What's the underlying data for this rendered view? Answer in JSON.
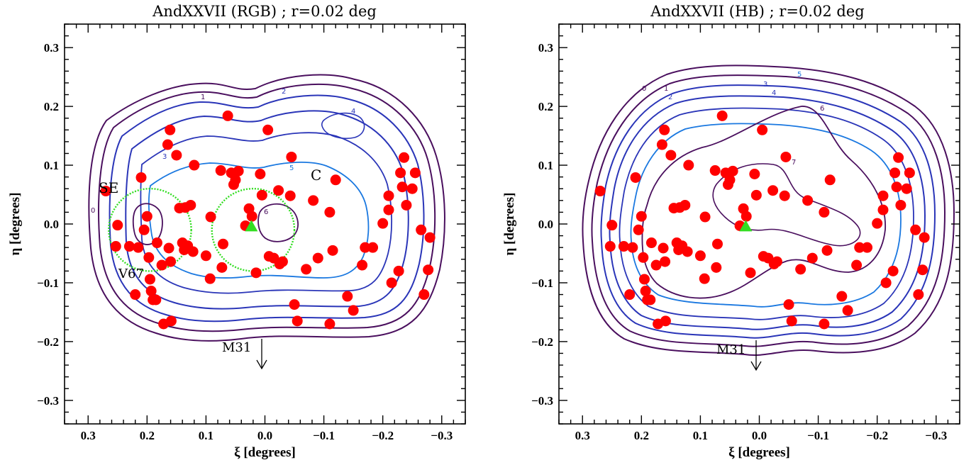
{
  "chart_data": [
    {
      "type": "scatter",
      "title": "AndXXVII (RGB) ; r=0.02 deg",
      "xlabel": "ξ [degrees]",
      "ylabel": "η [degrees]",
      "xlim": [
        0.34,
        -0.34
      ],
      "ylim": [
        -0.34,
        0.34
      ],
      "x_ticks": [
        "0.3",
        "0.2",
        "0.1",
        "0.0",
        "−0.1",
        "−0.2",
        "−0.3"
      ],
      "y_ticks": [
        "0.3",
        "0.2",
        "0.1",
        "0.0",
        "−0.1",
        "−0.2",
        "−0.3"
      ],
      "contour_levels": [
        "0",
        "1",
        "2",
        "3",
        "4",
        "5",
        "6"
      ],
      "annotations": {
        "se": "SE",
        "c": "C",
        "v67": "V67",
        "m31": "M31"
      },
      "center_marker": {
        "x": 0.023,
        "y": -0.004
      },
      "circles": [
        {
          "label": "SE",
          "x": 0.195,
          "y": -0.01,
          "r": 0.07
        },
        {
          "label": "C",
          "x": 0.02,
          "y": -0.01,
          "r": 0.07
        }
      ],
      "points": [
        [
          0.27,
          0.056
        ],
        [
          0.253,
          -0.038
        ],
        [
          0.25,
          -0.002
        ],
        [
          0.23,
          -0.038
        ],
        [
          0.22,
          -0.12
        ],
        [
          0.215,
          -0.04
        ],
        [
          0.21,
          0.079
        ],
        [
          0.205,
          -0.01
        ],
        [
          0.2,
          0.013
        ],
        [
          0.197,
          -0.057
        ],
        [
          0.195,
          -0.094
        ],
        [
          0.193,
          -0.114
        ],
        [
          0.19,
          -0.129
        ],
        [
          0.185,
          -0.129
        ],
        [
          0.183,
          -0.032
        ],
        [
          0.175,
          -0.07
        ],
        [
          0.172,
          -0.17
        ],
        [
          0.165,
          0.135
        ],
        [
          0.163,
          -0.041
        ],
        [
          0.161,
          0.16
        ],
        [
          0.16,
          -0.064
        ],
        [
          0.159,
          -0.165
        ],
        [
          0.15,
          0.117
        ],
        [
          0.145,
          0.027
        ],
        [
          0.14,
          -0.032
        ],
        [
          0.137,
          -0.044
        ],
        [
          0.135,
          0.028
        ],
        [
          0.131,
          -0.037
        ],
        [
          0.126,
          0.032
        ],
        [
          0.122,
          -0.047
        ],
        [
          0.12,
          0.1
        ],
        [
          0.1,
          -0.054
        ],
        [
          0.093,
          -0.093
        ],
        [
          0.092,
          0.012
        ],
        [
          0.075,
          0.091
        ],
        [
          0.073,
          -0.074
        ],
        [
          0.071,
          -0.034
        ],
        [
          0.063,
          0.184
        ],
        [
          0.057,
          0.087
        ],
        [
          0.053,
          0.067
        ],
        [
          0.05,
          0.075
        ],
        [
          0.045,
          0.09
        ],
        [
          0.033,
          -0.003
        ],
        [
          0.027,
          0.026
        ],
        [
          0.022,
          0.013
        ],
        [
          0.015,
          -0.083
        ],
        [
          0.008,
          0.085
        ],
        [
          0.005,
          0.049
        ],
        [
          -0.005,
          0.16
        ],
        [
          -0.007,
          -0.055
        ],
        [
          -0.015,
          -0.058
        ],
        [
          -0.023,
          0.057
        ],
        [
          -0.025,
          -0.068
        ],
        [
          -0.03,
          -0.064
        ],
        [
          -0.043,
          0.048
        ],
        [
          -0.045,
          0.114
        ],
        [
          -0.05,
          -0.137
        ],
        [
          -0.055,
          -0.165
        ],
        [
          -0.07,
          -0.077
        ],
        [
          -0.082,
          0.04
        ],
        [
          -0.09,
          -0.058
        ],
        [
          -0.11,
          0.02
        ],
        [
          -0.11,
          -0.17
        ],
        [
          -0.115,
          -0.045
        ],
        [
          -0.12,
          0.075
        ],
        [
          -0.14,
          -0.123
        ],
        [
          -0.15,
          -0.147
        ],
        [
          -0.165,
          -0.07
        ],
        [
          -0.17,
          -0.04
        ],
        [
          -0.183,
          -0.04
        ],
        [
          -0.2,
          0.001
        ],
        [
          -0.21,
          0.048
        ],
        [
          -0.21,
          0.024
        ],
        [
          -0.215,
          -0.1
        ],
        [
          -0.227,
          -0.08
        ],
        [
          -0.23,
          0.087
        ],
        [
          -0.233,
          0.063
        ],
        [
          -0.24,
          0.032
        ],
        [
          -0.25,
          0.06
        ],
        [
          -0.255,
          0.087
        ],
        [
          -0.265,
          -0.01
        ],
        [
          -0.27,
          -0.12
        ],
        [
          -0.277,
          -0.078
        ],
        [
          -0.28,
          -0.023
        ],
        [
          -0.236,
          0.113
        ]
      ]
    },
    {
      "type": "scatter",
      "title": "AndXXVII (HB) ; r=0.02 deg",
      "xlabel": "ξ [degrees]",
      "ylabel": "η [degrees]",
      "xlim": [
        0.34,
        -0.34
      ],
      "ylim": [
        -0.34,
        0.34
      ],
      "x_ticks": [
        "0.3",
        "0.2",
        "0.1",
        "0.0",
        "−0.1",
        "−0.2",
        "−0.3"
      ],
      "y_ticks": [
        "0.3",
        "0.2",
        "0.1",
        "0.0",
        "−0.1",
        "−0.2",
        "−0.3"
      ],
      "contour_levels": [
        "0",
        "1",
        "2",
        "3",
        "4",
        "5",
        "6",
        "7"
      ],
      "annotations": {
        "m31": "M31"
      },
      "center_marker": {
        "x": 0.023,
        "y": -0.004
      },
      "points": [
        [
          0.27,
          0.056
        ],
        [
          0.253,
          -0.038
        ],
        [
          0.25,
          -0.002
        ],
        [
          0.23,
          -0.038
        ],
        [
          0.22,
          -0.12
        ],
        [
          0.215,
          -0.04
        ],
        [
          0.21,
          0.079
        ],
        [
          0.205,
          -0.01
        ],
        [
          0.2,
          0.013
        ],
        [
          0.197,
          -0.057
        ],
        [
          0.195,
          -0.094
        ],
        [
          0.193,
          -0.114
        ],
        [
          0.19,
          -0.129
        ],
        [
          0.185,
          -0.129
        ],
        [
          0.183,
          -0.032
        ],
        [
          0.175,
          -0.07
        ],
        [
          0.172,
          -0.17
        ],
        [
          0.165,
          0.135
        ],
        [
          0.163,
          -0.041
        ],
        [
          0.161,
          0.16
        ],
        [
          0.16,
          -0.064
        ],
        [
          0.159,
          -0.165
        ],
        [
          0.15,
          0.117
        ],
        [
          0.145,
          0.027
        ],
        [
          0.14,
          -0.032
        ],
        [
          0.137,
          -0.044
        ],
        [
          0.135,
          0.028
        ],
        [
          0.131,
          -0.037
        ],
        [
          0.126,
          0.032
        ],
        [
          0.122,
          -0.047
        ],
        [
          0.12,
          0.1
        ],
        [
          0.1,
          -0.054
        ],
        [
          0.093,
          -0.093
        ],
        [
          0.092,
          0.012
        ],
        [
          0.075,
          0.091
        ],
        [
          0.073,
          -0.074
        ],
        [
          0.071,
          -0.034
        ],
        [
          0.063,
          0.184
        ],
        [
          0.057,
          0.087
        ],
        [
          0.053,
          0.067
        ],
        [
          0.05,
          0.075
        ],
        [
          0.045,
          0.09
        ],
        [
          0.033,
          -0.003
        ],
        [
          0.027,
          0.026
        ],
        [
          0.022,
          0.013
        ],
        [
          0.015,
          -0.083
        ],
        [
          0.008,
          0.085
        ],
        [
          0.005,
          0.049
        ],
        [
          -0.005,
          0.16
        ],
        [
          -0.007,
          -0.055
        ],
        [
          -0.015,
          -0.058
        ],
        [
          -0.023,
          0.057
        ],
        [
          -0.025,
          -0.068
        ],
        [
          -0.03,
          -0.064
        ],
        [
          -0.043,
          0.048
        ],
        [
          -0.045,
          0.114
        ],
        [
          -0.05,
          -0.137
        ],
        [
          -0.055,
          -0.165
        ],
        [
          -0.07,
          -0.077
        ],
        [
          -0.082,
          0.04
        ],
        [
          -0.09,
          -0.058
        ],
        [
          -0.11,
          0.02
        ],
        [
          -0.11,
          -0.17
        ],
        [
          -0.115,
          -0.045
        ],
        [
          -0.12,
          0.075
        ],
        [
          -0.14,
          -0.123
        ],
        [
          -0.15,
          -0.147
        ],
        [
          -0.165,
          -0.07
        ],
        [
          -0.17,
          -0.04
        ],
        [
          -0.183,
          -0.04
        ],
        [
          -0.2,
          0.001
        ],
        [
          -0.21,
          0.048
        ],
        [
          -0.21,
          0.024
        ],
        [
          -0.215,
          -0.1
        ],
        [
          -0.227,
          -0.08
        ],
        [
          -0.23,
          0.087
        ],
        [
          -0.233,
          0.063
        ],
        [
          -0.24,
          0.032
        ],
        [
          -0.25,
          0.06
        ],
        [
          -0.255,
          0.087
        ],
        [
          -0.265,
          -0.01
        ],
        [
          -0.27,
          -0.12
        ],
        [
          -0.277,
          -0.078
        ],
        [
          -0.28,
          -0.023
        ],
        [
          -0.236,
          0.113
        ]
      ]
    }
  ],
  "colors": {
    "points": "#ff0000",
    "center_marker": "#33dd22",
    "circle": "#33dd22",
    "contour_outer": "#4a0f5e",
    "contour_mid": "#2a35b8",
    "contour_inner": "#1a78e0",
    "axes": "#000000"
  }
}
